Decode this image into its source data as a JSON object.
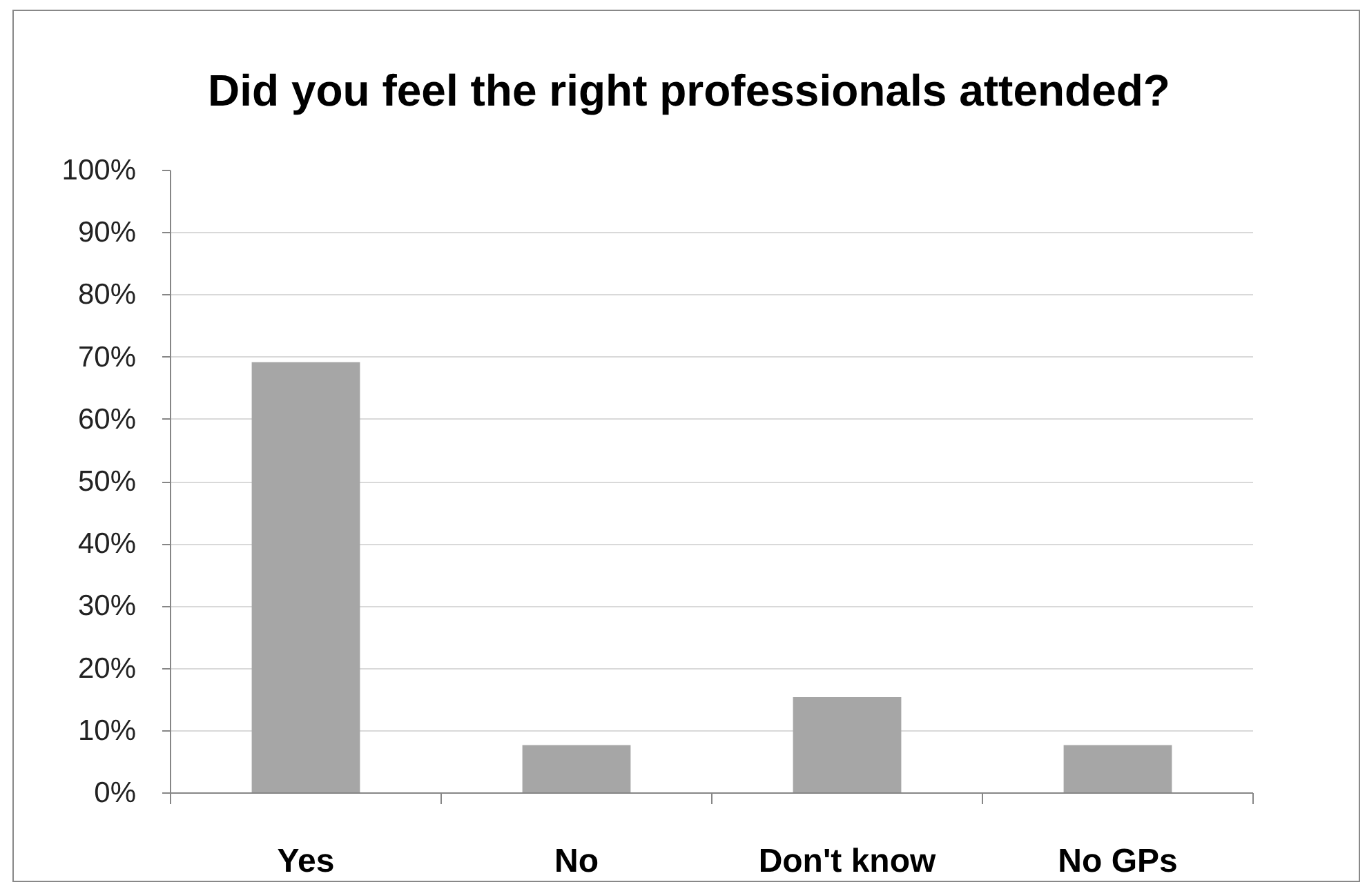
{
  "chart_data": {
    "type": "bar",
    "title": "Did you feel the right professionals attended?",
    "categories": [
      "Yes",
      "No",
      "Don't know",
      "No GPs"
    ],
    "values": [
      69.2,
      7.7,
      15.4,
      7.7
    ],
    "color": "#a6a6a6",
    "ylim": [
      0,
      100
    ],
    "yticks": [
      {
        "value": 0,
        "label": "0%"
      },
      {
        "value": 10,
        "label": "10%"
      },
      {
        "value": 20,
        "label": "20%"
      },
      {
        "value": 30,
        "label": "30%"
      },
      {
        "value": 40,
        "label": "40%"
      },
      {
        "value": 50,
        "label": "50%"
      },
      {
        "value": 60,
        "label": "60%"
      },
      {
        "value": 70,
        "label": "70%"
      },
      {
        "value": 80,
        "label": "80%"
      },
      {
        "value": 90,
        "label": "90%"
      },
      {
        "value": 100,
        "label": "100%"
      }
    ],
    "grid": "y"
  }
}
